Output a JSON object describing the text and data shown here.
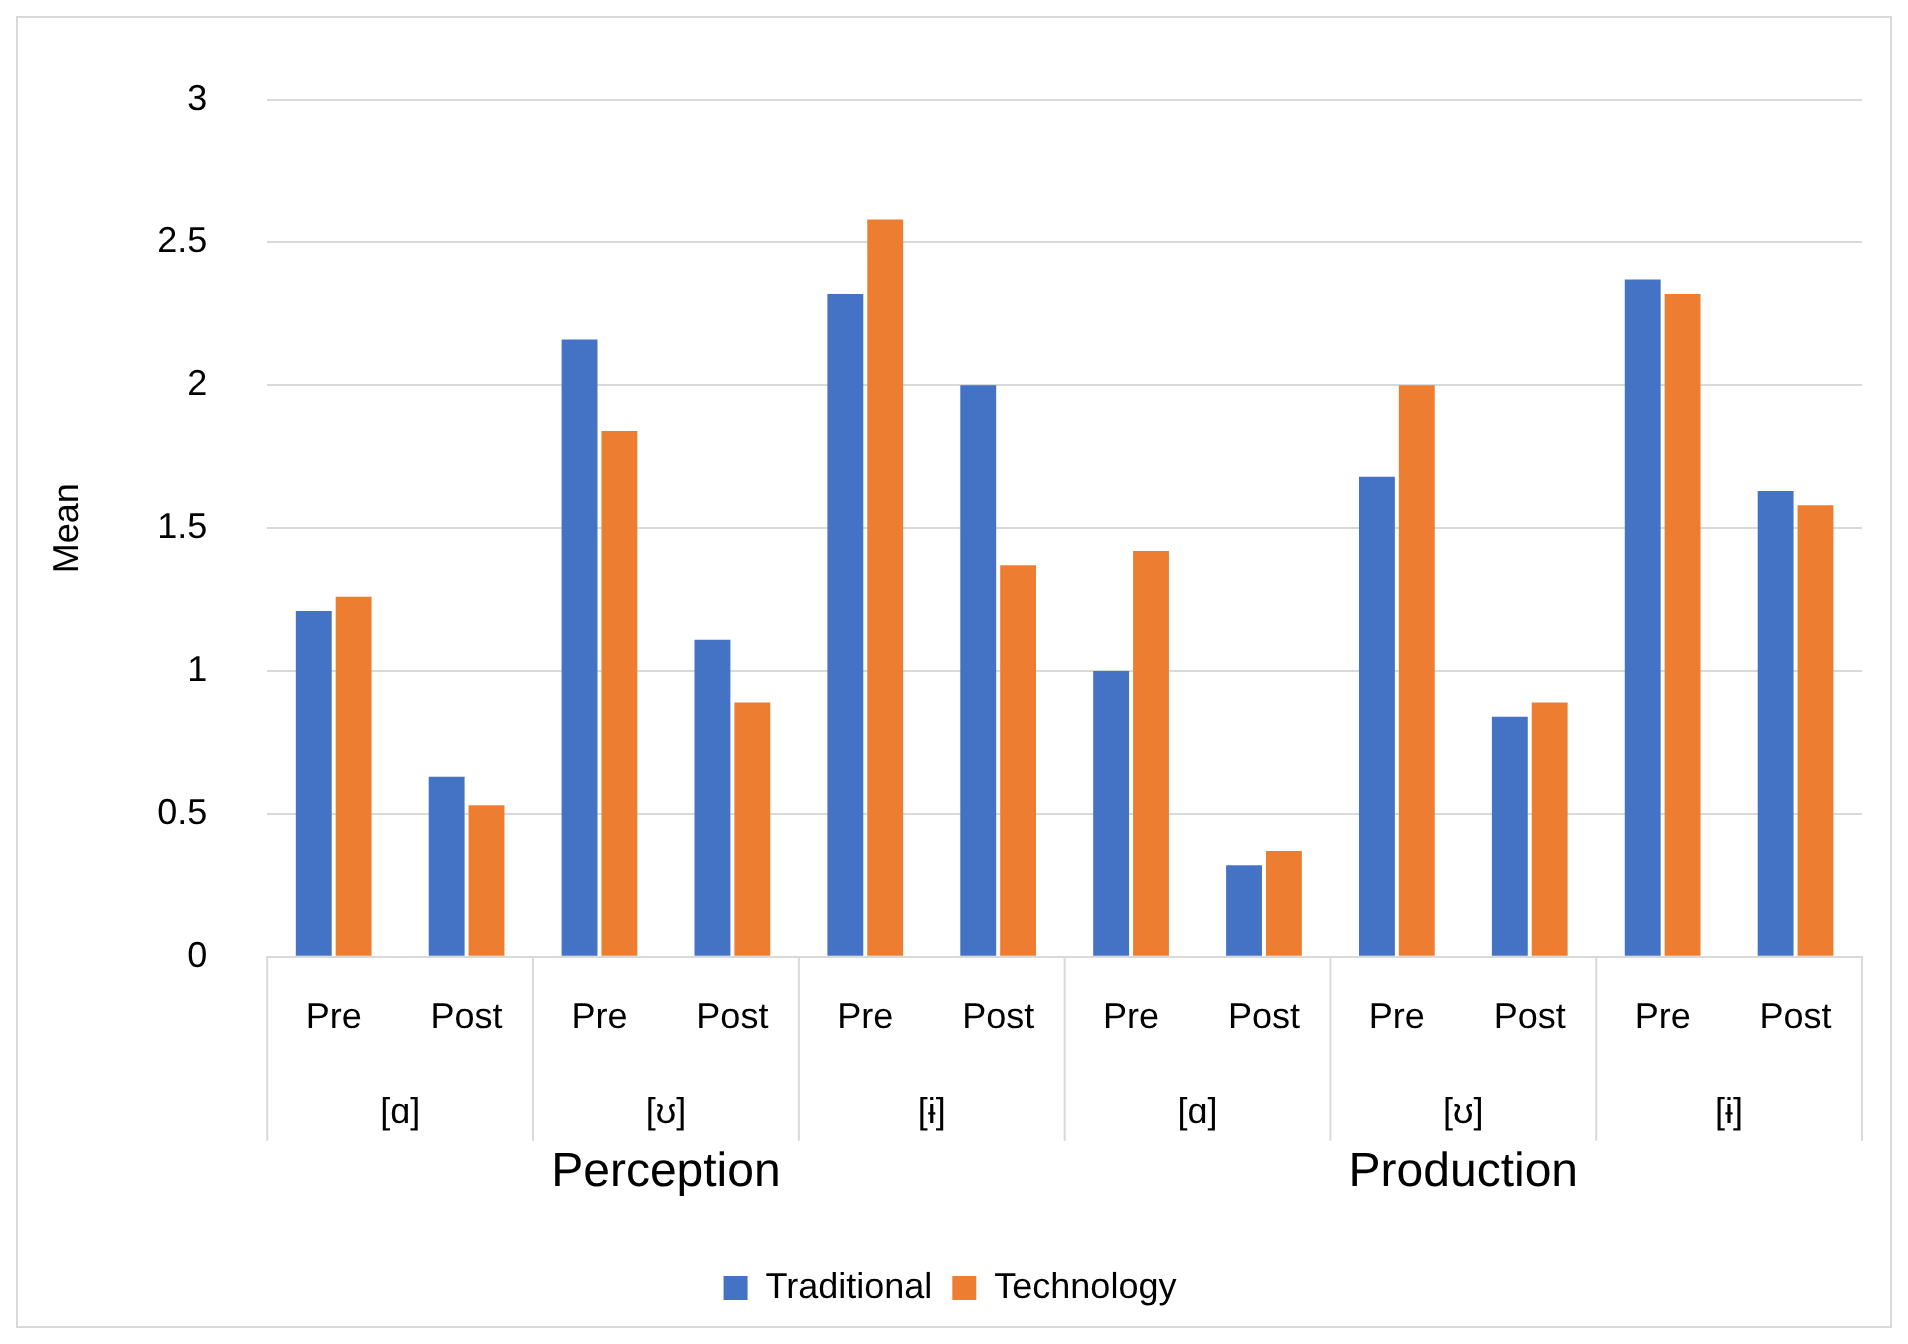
{
  "chart_data": {
    "type": "bar",
    "ylabel": "Mean",
    "categories": [
      "Pre",
      "Post",
      "Pre",
      "Post",
      "Pre",
      "Post",
      "Pre",
      "Post",
      "Pre",
      "Post",
      "Pre",
      "Post"
    ],
    "series": [
      {
        "name": "Traditional",
        "color": "#4472c4",
        "values": [
          1.21,
          0.63,
          2.16,
          1.11,
          2.32,
          2.0,
          1.0,
          0.32,
          1.68,
          0.84,
          2.37,
          1.63
        ]
      },
      {
        "name": "Technology",
        "color": "#ed7d31",
        "values": [
          1.26,
          0.53,
          1.84,
          0.89,
          2.58,
          1.37,
          1.42,
          0.37,
          2.0,
          0.89,
          2.32,
          1.58
        ]
      }
    ],
    "ylim": [
      0,
      3
    ],
    "yticks": [
      0,
      0.5,
      1,
      1.5,
      2,
      2.5,
      3
    ],
    "grid": "y",
    "legend": "bottom",
    "annotations": [
      "[ɑ]",
      "[ʊ]",
      "[ɨ]",
      "[ɑ]",
      "[ʊ]",
      "[ɨ]",
      "Perception",
      "Production"
    ]
  }
}
